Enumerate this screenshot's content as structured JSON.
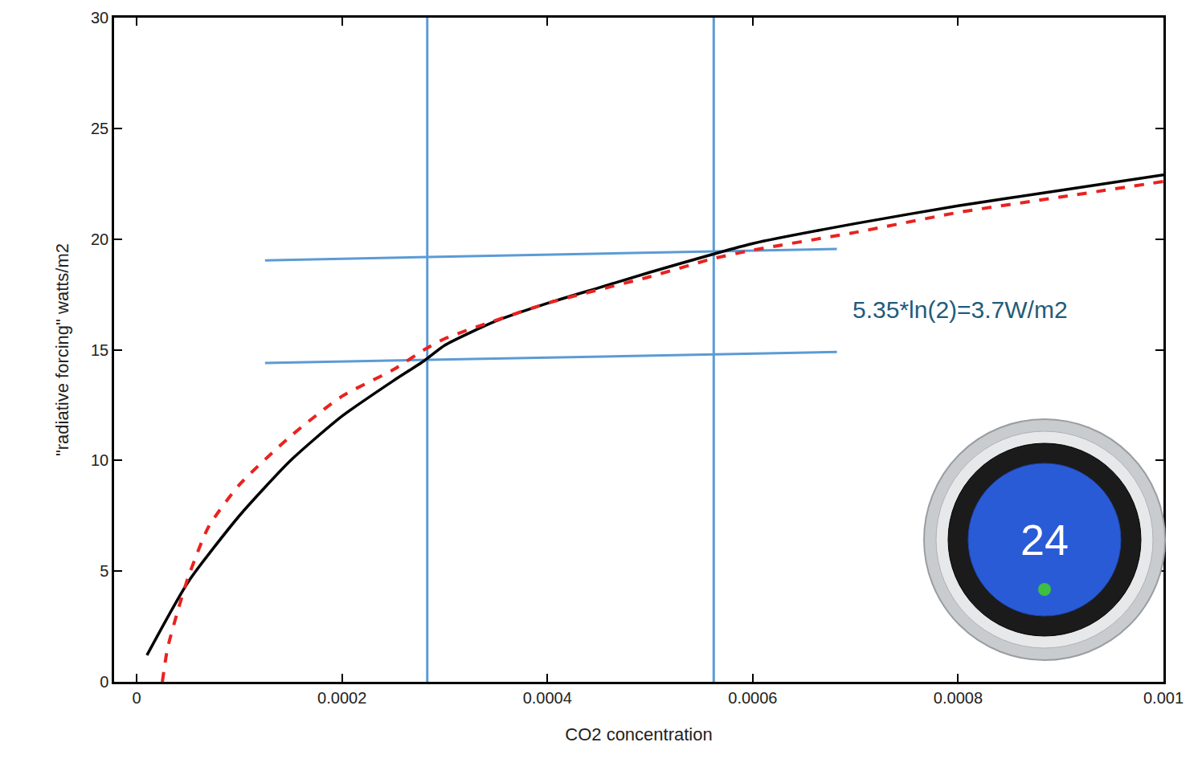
{
  "chart_data": {
    "type": "line",
    "x_label": "CO2 concentration",
    "y_label": "\"radiative forcing\" watts/m2",
    "xlim": [
      -2.2e-05,
      0.001
    ],
    "ylim": [
      0,
      30
    ],
    "xticks": [
      0,
      0.0002,
      0.0004,
      0.0006,
      0.0008,
      0.001
    ],
    "yticks": [
      0,
      5,
      10,
      15,
      20,
      25,
      30
    ],
    "grid": false,
    "series": [
      {
        "color": "#000000",
        "line_style": "solid",
        "x": [
          1e-05,
          5e-05,
          0.0001,
          0.00015,
          0.0002,
          0.00025,
          0.00028,
          0.0003,
          0.00035,
          0.0004,
          0.00045,
          0.0005,
          0.00056,
          0.0006,
          0.0007,
          0.0008,
          0.0009,
          0.001
        ],
        "values": [
          1.2,
          4.5,
          7.5,
          10,
          12,
          13.6,
          14.5,
          15.2,
          16.3,
          17.1,
          17.8,
          18.5,
          19.3,
          19.8,
          20.7,
          21.5,
          22.2,
          22.9
        ]
      },
      {
        "color": "#e8231f",
        "line_style": "dashed",
        "x": [
          2.5e-05,
          3e-05,
          4e-05,
          5e-05,
          7e-05,
          0.0001,
          0.00015,
          0.0002,
          0.00025,
          0.00028,
          0.0003,
          0.0004,
          0.0005,
          0.00056,
          0.0006,
          0.0007,
          0.0008,
          0.0009,
          0.001
        ],
        "values": [
          0,
          1.5,
          3.2,
          4.7,
          7,
          8.9,
          11.1,
          12.9,
          14.1,
          15,
          15.5,
          17.1,
          18.3,
          19.1,
          19.5,
          20.3,
          21.2,
          21.9,
          22.6
        ]
      }
    ],
    "reference_lines": [
      {
        "color": "#5b9bd5",
        "x": [
          0.000283,
          0.000283
        ],
        "y": [
          0,
          30
        ]
      },
      {
        "color": "#5b9bd5",
        "x": [
          0.000562,
          0.000562
        ],
        "y": [
          0,
          30
        ]
      },
      {
        "color": "#5b9bd5",
        "x": [
          0.000125,
          0.000682
        ],
        "y": [
          14.4,
          14.9
        ]
      },
      {
        "color": "#5b9bd5",
        "x": [
          0.000125,
          0.000682
        ],
        "y": [
          19.04,
          19.55
        ]
      }
    ],
    "annotations": [
      "5.35*ln(2)=3.7W/m2",
      "24"
    ]
  }
}
